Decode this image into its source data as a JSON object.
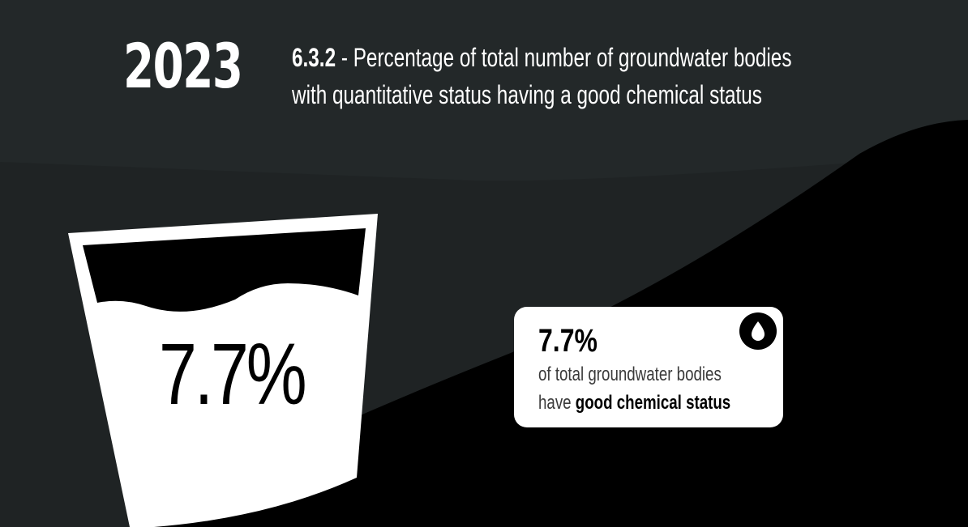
{
  "header": {
    "year": "2023",
    "indicator_code": "6.3.2",
    "title_line1_rest": " - Percentage of total number of groundwater bodies",
    "title_line2": "with quantitative status having a good chemical status"
  },
  "glass": {
    "value_label": "7.7%",
    "fill_fraction": 0.077
  },
  "card": {
    "value": "7.7%",
    "line1": "of total groundwater bodies",
    "line2_prefix": "have ",
    "line2_strong": "good chemical status",
    "icon": "water-drop-icon"
  },
  "colors": {
    "header_bg": "#222829",
    "body_bg": "#1f2324",
    "dark_wave": "#000000",
    "glass": "#ffffff",
    "card": "#ffffff",
    "text": "#ffffff"
  }
}
